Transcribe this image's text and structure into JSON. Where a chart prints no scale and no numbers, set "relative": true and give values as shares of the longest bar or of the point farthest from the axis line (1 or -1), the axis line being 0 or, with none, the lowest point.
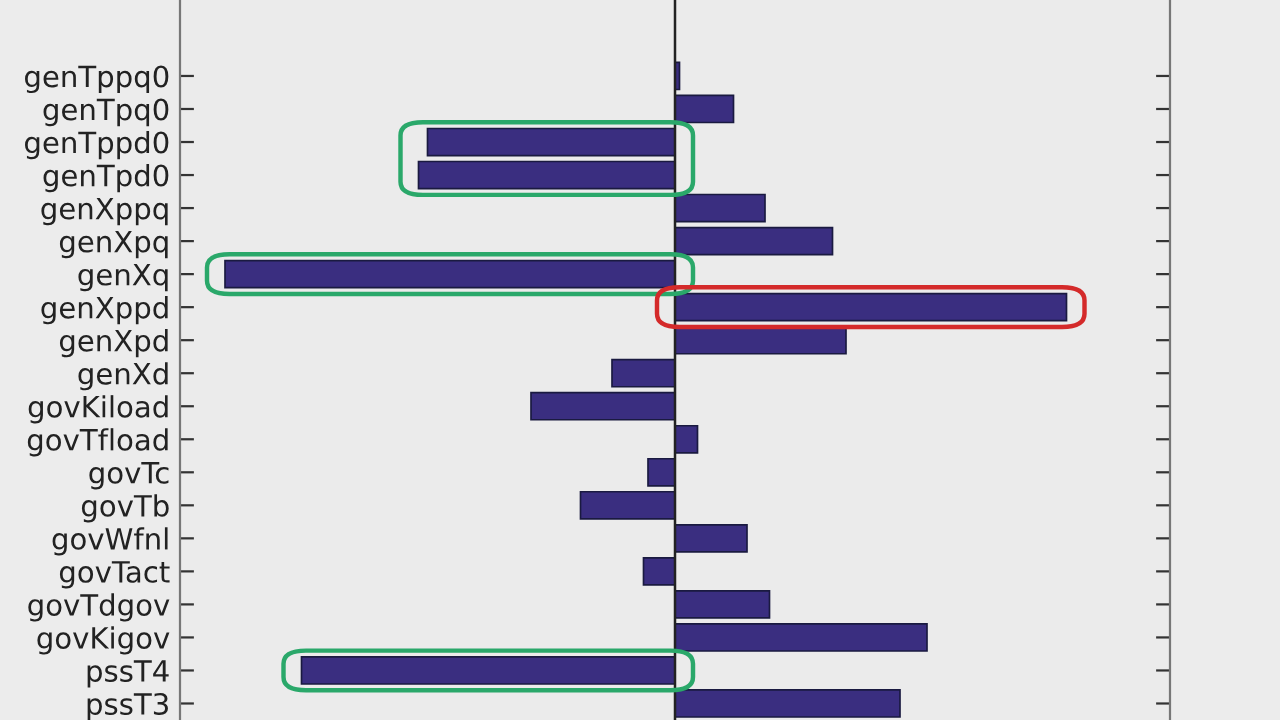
{
  "chart_data": {
    "type": "bar",
    "orientation": "horizontal",
    "relative": true,
    "categories": [
      "genTppq0",
      "genTpq0",
      "genTppd0",
      "genTpd0",
      "genXppq",
      "genXpq",
      "genXq",
      "genXppd",
      "genXpd",
      "genXd",
      "govKiload",
      "govTfload",
      "govTc",
      "govTb",
      "govWfnl",
      "govTact",
      "govTdgov",
      "govKigov",
      "pssT4",
      "pssT3"
    ],
    "values": [
      0.01,
      0.13,
      -0.55,
      -0.57,
      0.2,
      0.35,
      -1,
      0.87,
      0.38,
      -0.14,
      -0.32,
      0.05,
      -0.06,
      -0.21,
      0.16,
      -0.07,
      0.21,
      0.56,
      -0.83,
      0.5
    ],
    "color": "#3a2e80"
  }
}
